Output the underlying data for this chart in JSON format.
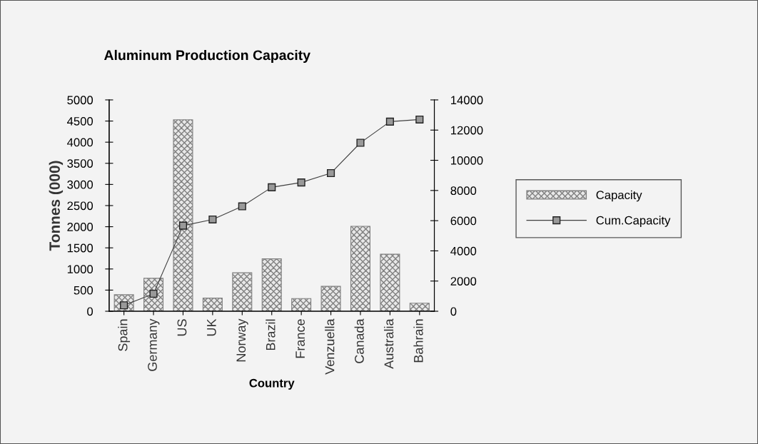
{
  "chart_data": {
    "type": "bar",
    "title": "Aluminum Production Capacity",
    "xlabel": "Country",
    "ylabel": "Tonnes (000)",
    "categories": [
      "Spain",
      "Germany",
      "US",
      "UK",
      "Norway",
      "Brazil",
      "France",
      "Venzuella",
      "Canada",
      "Australia",
      "Bahrain"
    ],
    "series": [
      {
        "name": "Capacity",
        "color": "#808080",
        "values": [
          390,
          780,
          4530,
          310,
          910,
          1240,
          300,
          590,
          2010,
          1350,
          190
        ]
      },
      {
        "name": "Cum.Capacity",
        "type": "line",
        "axis": "y2",
        "color": "#404040",
        "marker": "square",
        "values": [
          390,
          1160,
          5670,
          6080,
          6950,
          8210,
          8530,
          9150,
          11160,
          12560,
          12700
        ]
      }
    ],
    "ylim": [
      0,
      5000
    ],
    "yticks": [
      0,
      500,
      1000,
      1500,
      2000,
      2500,
      3000,
      3500,
      4000,
      4500,
      5000
    ],
    "y2lim": [
      0,
      14000
    ],
    "y2ticks": [
      0,
      2000,
      4000,
      6000,
      8000,
      10000,
      12000,
      14000
    ],
    "grid": false,
    "legend": "right"
  }
}
